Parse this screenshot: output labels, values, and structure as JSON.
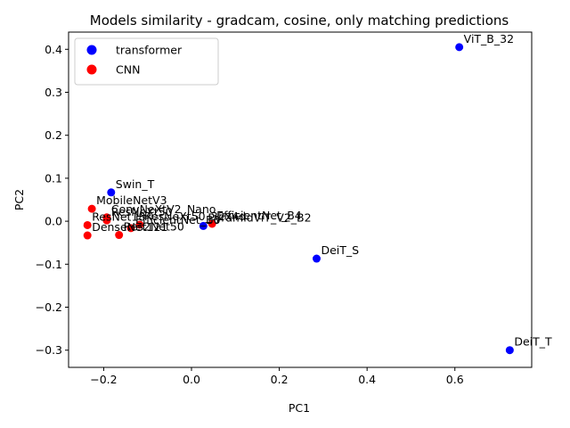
{
  "chart_data": {
    "type": "scatter",
    "title": "Models similarity - gradcam, cosine, only matching predictions",
    "xlabel": "PC1",
    "ylabel": "PC2",
    "xlim": [
      -0.28,
      0.775
    ],
    "ylim": [
      -0.34,
      0.44
    ],
    "x_ticks": [
      -0.2,
      0.0,
      0.2,
      0.4,
      0.6
    ],
    "x_tick_labels": [
      "−0.2",
      "0.0",
      "0.2",
      "0.4",
      "0.6"
    ],
    "y_ticks": [
      -0.3,
      -0.2,
      -0.1,
      0.0,
      0.1,
      0.2,
      0.3,
      0.4
    ],
    "y_tick_labels": [
      "−0.3",
      "−0.2",
      "−0.1",
      "0.0",
      "0.1",
      "0.2",
      "0.3",
      "0.4"
    ],
    "grid": false,
    "legend": {
      "placement": "top-left",
      "entries": [
        {
          "label": "transformer",
          "color": "#0000ff"
        },
        {
          "label": "CNN",
          "color": "#ff0000"
        }
      ]
    },
    "points": [
      {
        "label": "ViT_B_32",
        "x": 0.61,
        "y": 0.405,
        "group": "transformer",
        "color": "#0000ff"
      },
      {
        "label": "DeiT_T",
        "x": 0.725,
        "y": -0.3,
        "group": "transformer",
        "color": "#0000ff"
      },
      {
        "label": "DeiT_S",
        "x": 0.285,
        "y": -0.087,
        "group": "transformer",
        "color": "#0000ff"
      },
      {
        "label": "Swin_T",
        "x": -0.183,
        "y": 0.067,
        "group": "transformer",
        "color": "#0000ff"
      },
      {
        "label": "PyramidViT_V2_B2",
        "x": 0.027,
        "y": -0.011,
        "group": "transformer",
        "color": "#0000ff"
      },
      {
        "label": "MobileNetV3",
        "x": -0.227,
        "y": 0.029,
        "group": "CNN",
        "color": "#ff0000"
      },
      {
        "label": "ConvNeXtV2_Nano",
        "x": -0.193,
        "y": 0.009,
        "group": "CNN",
        "color": "#ff0000"
      },
      {
        "label": "ResNeXt50",
        "x": -0.193,
        "y": 0.002,
        "group": "CNN",
        "color": "#ff0000"
      },
      {
        "label": "ResNet18",
        "x": -0.237,
        "y": -0.009,
        "group": "CNN",
        "color": "#ff0000"
      },
      {
        "label": "DenseNet121",
        "x": -0.237,
        "y": -0.033,
        "group": "CNN",
        "color": "#ff0000"
      },
      {
        "label": "Res2Net50",
        "x": -0.165,
        "y": -0.032,
        "group": "CNN",
        "color": "#ff0000"
      },
      {
        "label": "EfficientNet_B0",
        "x": -0.138,
        "y": -0.016,
        "group": "CNN",
        "color": "#ff0000"
      },
      {
        "label": "EfficientNet_B4",
        "x": 0.047,
        "y": -0.006,
        "group": "CNN",
        "color": "#ff0000"
      },
      {
        "label": "ResNeXt50_32x4d",
        "x": -0.118,
        "y": -0.008,
        "group": "CNN",
        "color": "#ff0000"
      }
    ]
  }
}
